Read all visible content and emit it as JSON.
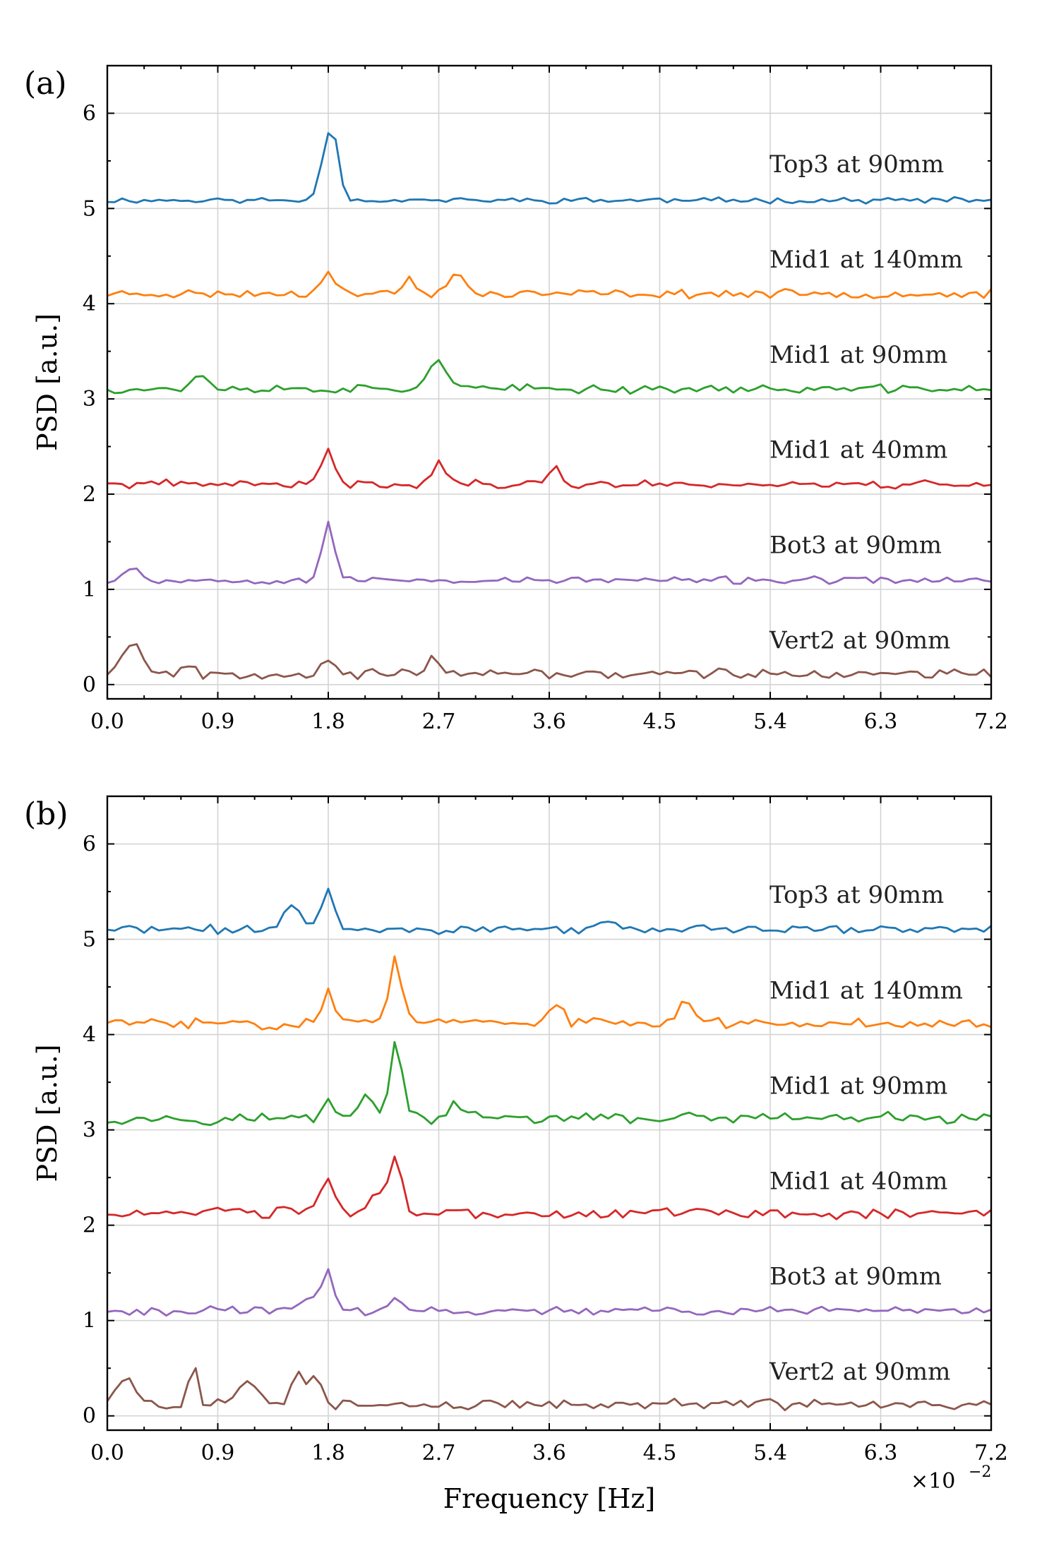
{
  "chart_data": [
    {
      "type": "line",
      "panel_label": "(a)",
      "xlabel": "",
      "ylabel": "PSD [a.u.]",
      "xlim": [
        0.0,
        0.072
      ],
      "ylim": [
        -0.15,
        6.5
      ],
      "x_tick_labels": [
        "0.0",
        "0.9",
        "1.8",
        "2.7",
        "3.6",
        "4.5",
        "5.4",
        "6.3",
        "7.2"
      ],
      "y_tick_labels": [
        "0",
        "1",
        "2",
        "3",
        "4",
        "5",
        "6"
      ],
      "x_step": 0.0006,
      "series": [
        {
          "name": "Top3 at 90mm",
          "color": "#1f77b4",
          "offset": 5,
          "peaks": [
            [
              0.018,
              0.6,
              0.0006
            ],
            [
              0.0186,
              0.3,
              0.0004
            ]
          ],
          "noise": 0.04,
          "seed": 11
        },
        {
          "name": "Mid1 at 140mm",
          "color": "#ff7f0e",
          "offset": 4,
          "peaks": [
            [
              0.018,
              0.25,
              0.0006
            ],
            [
              0.0245,
              0.18,
              0.0004
            ],
            [
              0.0285,
              0.2,
              0.0007
            ]
          ],
          "noise": 0.06,
          "seed": 23
        },
        {
          "name": "Mid1 at 90mm",
          "color": "#2ca02c",
          "offset": 3,
          "peaks": [
            [
              0.0075,
              0.15,
              0.0006
            ],
            [
              0.027,
              0.3,
              0.0008
            ]
          ],
          "noise": 0.06,
          "seed": 37
        },
        {
          "name": "Mid1 at 40mm",
          "color": "#d62728",
          "offset": 2,
          "peaks": [
            [
              0.018,
              0.35,
              0.0005
            ],
            [
              0.027,
              0.22,
              0.0006
            ],
            [
              0.0365,
              0.18,
              0.0005
            ]
          ],
          "noise": 0.06,
          "seed": 41
        },
        {
          "name": "Bot3 at 90mm",
          "color": "#9467bd",
          "offset": 1,
          "peaks": [
            [
              0.018,
              0.62,
              0.0005
            ],
            [
              0.002,
              0.15,
              0.0006
            ]
          ],
          "noise": 0.05,
          "seed": 53
        },
        {
          "name": "Vert2 at 90mm",
          "color": "#8c564b",
          "offset": 0,
          "peaks": [
            [
              0.002,
              0.35,
              0.0008
            ],
            [
              0.0065,
              0.12,
              0.0004
            ],
            [
              0.018,
              0.15,
              0.0006
            ],
            [
              0.0265,
              0.15,
              0.0004
            ]
          ],
          "noise": 0.07,
          "seed": 67
        }
      ]
    },
    {
      "type": "line",
      "panel_label": "(b)",
      "xlabel": "Frequency [Hz]",
      "ylabel": "PSD [a.u.]",
      "x_multiplier": "×10",
      "x_multiplier_exp": "−2",
      "xlim": [
        0.0,
        0.072
      ],
      "ylim": [
        -0.15,
        6.5
      ],
      "x_tick_labels": [
        "0.0",
        "0.9",
        "1.8",
        "2.7",
        "3.6",
        "4.5",
        "5.4",
        "6.3",
        "7.2"
      ],
      "y_tick_labels": [
        "0",
        "1",
        "2",
        "3",
        "4",
        "5",
        "6"
      ],
      "x_step": 0.0006,
      "series": [
        {
          "name": "Top3 at 90mm",
          "color": "#1f77b4",
          "offset": 5,
          "peaks": [
            [
              0.018,
              0.45,
              0.0005
            ],
            [
              0.015,
              0.25,
              0.0007
            ],
            [
              0.041,
              0.1,
              0.0005
            ]
          ],
          "noise": 0.06,
          "seed": 71
        },
        {
          "name": "Mid1 at 140mm",
          "color": "#ff7f0e",
          "offset": 4,
          "peaks": [
            [
              0.0235,
              0.7,
              0.0005
            ],
            [
              0.018,
              0.35,
              0.0005
            ],
            [
              0.0365,
              0.22,
              0.0005
            ],
            [
              0.047,
              0.2,
              0.0006
            ]
          ],
          "noise": 0.08,
          "seed": 83
        },
        {
          "name": "Mid1 at 90mm",
          "color": "#2ca02c",
          "offset": 3,
          "peaks": [
            [
              0.0235,
              0.82,
              0.0005
            ],
            [
              0.021,
              0.25,
              0.0006
            ],
            [
              0.018,
              0.2,
              0.0005
            ],
            [
              0.0285,
              0.2,
              0.0004
            ]
          ],
          "noise": 0.08,
          "seed": 97
        },
        {
          "name": "Mid1 at 40mm",
          "color": "#d62728",
          "offset": 2,
          "peaks": [
            [
              0.0235,
              0.6,
              0.0005
            ],
            [
              0.018,
              0.35,
              0.0006
            ],
            [
              0.022,
              0.2,
              0.0006
            ]
          ],
          "noise": 0.08,
          "seed": 103
        },
        {
          "name": "Bot3 at 90mm",
          "color": "#9467bd",
          "offset": 1,
          "peaks": [
            [
              0.018,
              0.42,
              0.0005
            ],
            [
              0.0165,
              0.15,
              0.0006
            ],
            [
              0.0235,
              0.12,
              0.0004
            ]
          ],
          "noise": 0.06,
          "seed": 113
        },
        {
          "name": "Vert2 at 90mm",
          "color": "#8c564b",
          "offset": 0,
          "peaks": [
            [
              0.0015,
              0.3,
              0.0007
            ],
            [
              0.007,
              0.4,
              0.0004
            ],
            [
              0.0115,
              0.3,
              0.0007
            ],
            [
              0.0155,
              0.35,
              0.0005
            ],
            [
              0.017,
              0.3,
              0.0004
            ]
          ],
          "noise": 0.08,
          "seed": 127
        }
      ]
    }
  ]
}
